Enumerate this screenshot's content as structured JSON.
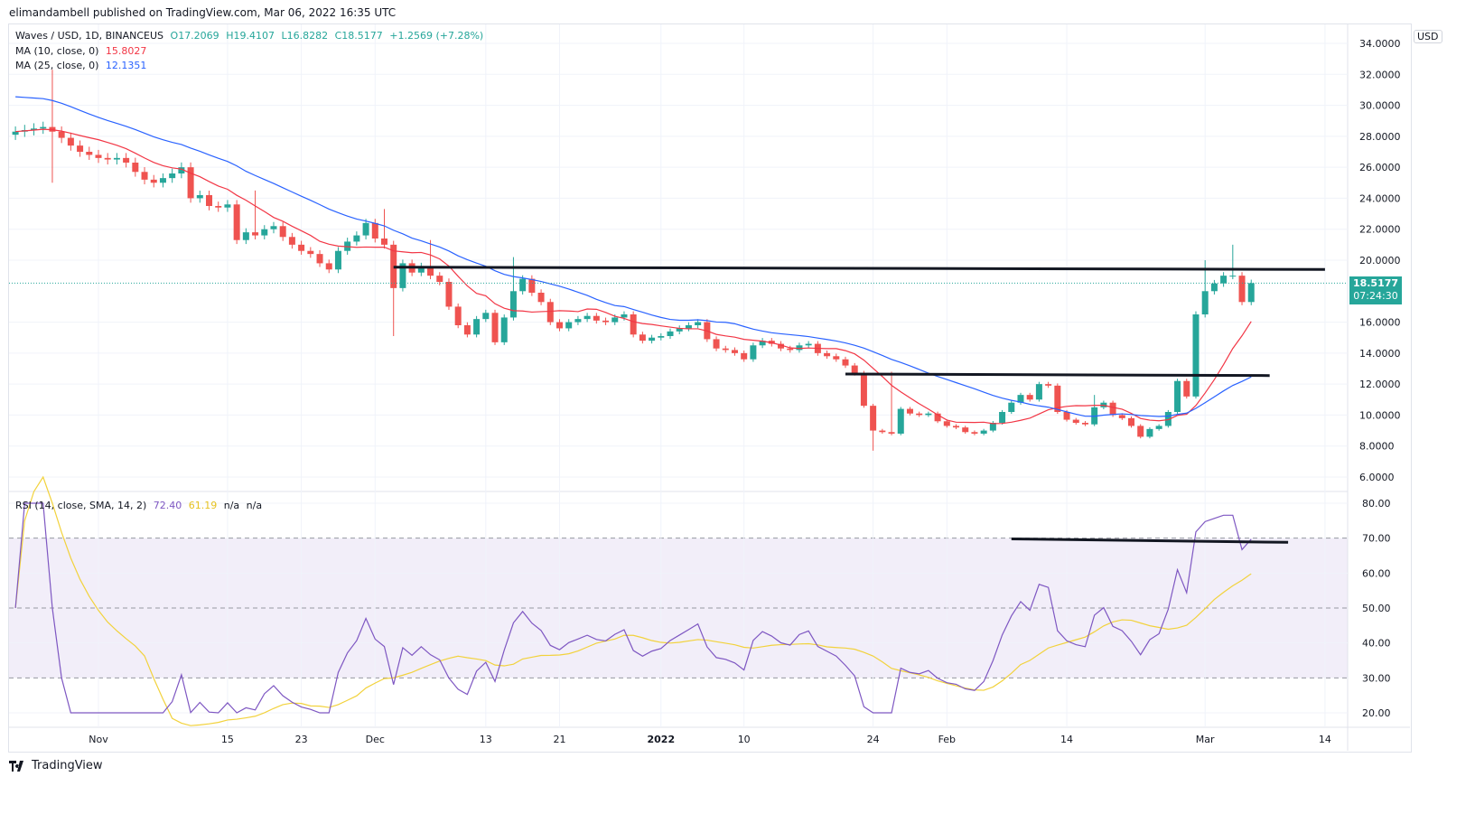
{
  "publisher_line": "elimandambell published on TradingView.com, Mar 06, 2022 16:35 UTC",
  "footer_brand": "TradingView",
  "legend": {
    "symbol": "Waves / USD, 1D, BINANCEUS",
    "open": "O17.2069",
    "high": "H19.4107",
    "low": "L16.8282",
    "close": "C18.5177",
    "change": "+1.2569 (+7.28%)",
    "ma10_label": "MA (10, close, 0)",
    "ma10_value": "15.8027",
    "ma25_label": "MA (25, close, 0)",
    "ma25_value": "12.1351",
    "rsi_label": "RSI (14, close, SMA, 14, 2)",
    "rsi_value": "72.40",
    "rsi_sma_value": "61.19",
    "na1": "n/a",
    "na2": "n/a"
  },
  "currency": "USD",
  "last_price": "18.5177",
  "countdown": "07:24:30",
  "colors": {
    "up": "#26a69a",
    "down": "#ef5350",
    "ma10": "#f23645",
    "ma25": "#2962ff",
    "rsi": "#7e57c2",
    "rsi_sma": "#f2d23c"
  },
  "chart_data": {
    "type": "candlestick",
    "title": "Waves / USD, 1D, BINANCEUS",
    "start_date": "2021-10-23",
    "first_open": 28.1,
    "close": [
      28.3,
      28.4,
      28.5,
      28.6,
      28.3,
      27.9,
      27.4,
      27.0,
      26.8,
      26.6,
      26.5,
      26.6,
      26.3,
      25.7,
      25.2,
      25.0,
      25.3,
      25.6,
      26.0,
      24.0,
      24.2,
      23.5,
      23.4,
      23.6,
      21.3,
      21.8,
      21.6,
      22.0,
      22.2,
      21.5,
      21.0,
      20.6,
      20.4,
      19.8,
      19.4,
      20.6,
      21.2,
      21.6,
      22.4,
      21.4,
      21.0,
      18.2,
      19.8,
      19.2,
      19.6,
      19.0,
      18.6,
      17.0,
      15.8,
      15.2,
      16.2,
      16.6,
      14.7,
      16.3,
      18.0,
      18.8,
      17.9,
      17.3,
      16.0,
      15.6,
      16.0,
      16.2,
      16.4,
      16.1,
      16.0,
      16.3,
      16.5,
      15.2,
      14.8,
      15.0,
      15.1,
      15.4,
      15.6,
      15.8,
      16.0,
      14.9,
      14.3,
      14.2,
      14.0,
      13.6,
      14.5,
      14.8,
      14.6,
      14.3,
      14.2,
      14.5,
      14.6,
      14.0,
      13.8,
      13.6,
      13.2,
      12.7,
      10.6,
      9.0,
      8.9,
      8.8,
      10.4,
      10.1,
      10.0,
      10.1,
      9.6,
      9.3,
      9.2,
      8.9,
      8.8,
      9.0,
      9.5,
      10.2,
      10.8,
      11.3,
      11.0,
      12.0,
      11.9,
      10.2,
      9.7,
      9.5,
      9.4,
      10.5,
      10.8,
      10.0,
      9.8,
      9.3,
      8.6,
      9.1,
      9.3,
      10.2,
      12.2,
      11.2,
      16.5,
      18.0,
      18.5,
      19.0,
      19.0,
      17.3,
      18.52
    ],
    "wick_extremes": [
      {
        "i": 4,
        "high": 32.3,
        "low": 25.0
      },
      {
        "i": 26,
        "high": 24.5
      },
      {
        "i": 40,
        "high": 23.3
      },
      {
        "i": 41,
        "low": 15.1
      },
      {
        "i": 45,
        "high": 21.3
      },
      {
        "i": 54,
        "high": 20.2
      },
      {
        "i": 93,
        "low": 7.7
      },
      {
        "i": 95,
        "high": 12.8
      },
      {
        "i": 117,
        "high": 11.3
      },
      {
        "i": 129,
        "high": 20.0
      },
      {
        "i": 132,
        "high": 21.0
      }
    ],
    "price_axis": {
      "ylim": [
        6,
        34
      ],
      "ticks": [
        "34.0000",
        "32.0000",
        "30.0000",
        "28.0000",
        "26.0000",
        "24.0000",
        "22.0000",
        "20.0000",
        "16.0000",
        "14.0000",
        "12.0000",
        "10.0000",
        "8.0000",
        "6.0000"
      ]
    },
    "rsi_axis": {
      "ylim": [
        20,
        80
      ],
      "ticks": [
        "80.00",
        "70.00",
        "60.00",
        "50.00",
        "40.00",
        "30.00",
        "20.00"
      ],
      "band": [
        30,
        70
      ]
    },
    "x_ticks": [
      {
        "label": "Nov",
        "i": 9
      },
      {
        "label": "15",
        "i": 23
      },
      {
        "label": "23",
        "i": 31
      },
      {
        "label": "Dec",
        "i": 39
      },
      {
        "label": "13",
        "i": 51
      },
      {
        "label": "21",
        "i": 59
      },
      {
        "label": "2022",
        "i": 70
      },
      {
        "label": "10",
        "i": 79
      },
      {
        "label": "24",
        "i": 93
      },
      {
        "label": "Feb",
        "i": 101
      },
      {
        "label": "14",
        "i": 114
      },
      {
        "label": "Mar",
        "i": 129
      },
      {
        "label": "14",
        "i": 142
      }
    ],
    "trendlines": [
      {
        "pane": "price",
        "from": {
          "i": 41,
          "v": 19.55
        },
        "to": {
          "i": 142,
          "v": 19.4
        }
      },
      {
        "pane": "price",
        "from": {
          "i": 90,
          "v": 12.65
        },
        "to": {
          "i": 136,
          "v": 12.55
        }
      },
      {
        "pane": "rsi",
        "from": {
          "i": 108,
          "v": 69.8
        },
        "to": {
          "i": 138,
          "v": 68.8
        }
      }
    ],
    "ma_periods": [
      10,
      25
    ],
    "rsi_period": 14
  }
}
